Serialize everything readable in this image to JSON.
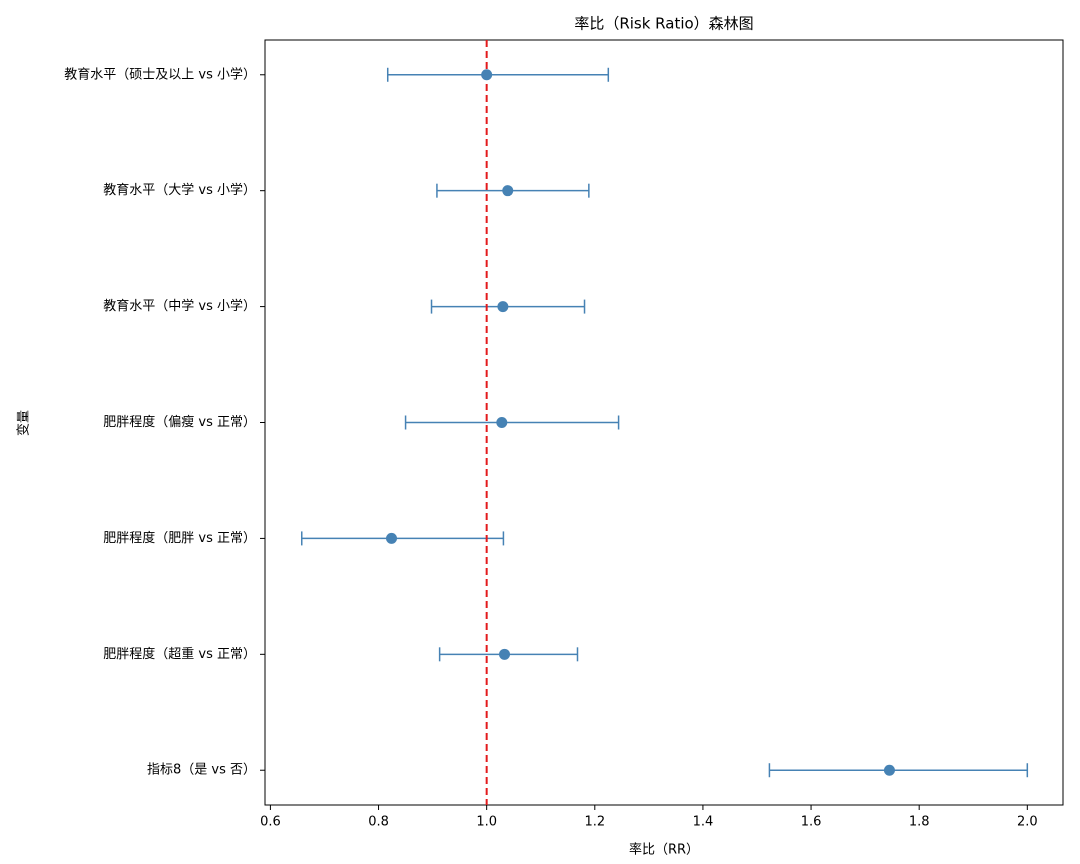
{
  "chart_data": {
    "type": "forest",
    "title": "率比（Risk Ratio）森林图",
    "x_label": "率比（RR）",
    "y_label": "变量",
    "categories": [
      "教育水平（硕士及以上 vs 小学）",
      "教育水平（大学 vs 小学）",
      "教育水平（中学 vs 小学）",
      "肥胖程度（偏瘦 vs 正常）",
      "肥胖程度（肥胖 vs 正常）",
      "肥胖程度（超重 vs 正常）",
      "指标8（是 vs 否）"
    ],
    "values": [
      1.0,
      1.039,
      1.03,
      1.028,
      0.824,
      1.033,
      1.745
    ],
    "lower": [
      0.817,
      0.908,
      0.898,
      0.85,
      0.658,
      0.913,
      1.523
    ],
    "upper": [
      1.225,
      1.189,
      1.181,
      1.244,
      1.031,
      1.168,
      2.0
    ],
    "color": "#4682b4",
    "reference_line": 1,
    "reference_color": "#e31a1c",
    "xlim": [
      0.59,
      2.066
    ],
    "xticks": [
      0.6,
      0.8,
      {
        "value": 1,
        "label": "1.0"
      },
      1.2,
      1.4,
      1.6,
      1.8,
      {
        "value": 2,
        "label": "2.0"
      }
    ]
  }
}
